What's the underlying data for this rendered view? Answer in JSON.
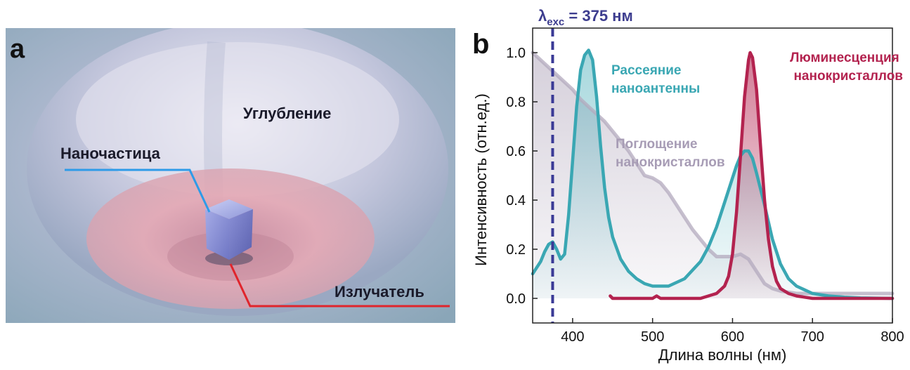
{
  "panel_a": {
    "label": "a",
    "labels": {
      "depression": "Углубление",
      "nanoparticle": "Наночастица",
      "emitter": "Излучатель"
    },
    "colors": {
      "nanoparticle_line": "#2e9be8",
      "emitter_line": "#e0252c",
      "label_text": "#1a1a2a"
    }
  },
  "panel_b": {
    "label": "b",
    "excitation_label": "λexc = 375 нм",
    "excitation_main": "λ",
    "excitation_sub": "exc",
    "excitation_rest": " = 375 нм"
  },
  "chart_data": {
    "type": "line",
    "xlabel": "Длина волны (нм)",
    "ylabel": "Интенсивность (отн.ед.)",
    "xlim": [
      350,
      800
    ],
    "ylim": [
      -0.1,
      1.1
    ],
    "xticks": [
      400,
      500,
      600,
      700,
      800
    ],
    "yticks": [
      0.0,
      0.2,
      0.4,
      0.6,
      0.8,
      1.0
    ],
    "xtick_labels": [
      "400",
      "500",
      "600",
      "700",
      "800"
    ],
    "ytick_labels": [
      "0.0",
      "0.2",
      "0.4",
      "0.6",
      "0.8",
      "1.0"
    ],
    "excitation_wavelength": 375,
    "series": [
      {
        "name": "Поглощение нанокристаллов",
        "label_line1": "Поглощение",
        "label_line2": "нанокристаллов",
        "color": "#b3a9bd",
        "x": [
          350,
          360,
          370,
          380,
          390,
          400,
          410,
          420,
          430,
          440,
          450,
          460,
          470,
          480,
          490,
          500,
          510,
          520,
          530,
          540,
          550,
          560,
          570,
          580,
          590,
          600,
          610,
          620,
          630,
          640,
          650,
          660,
          680,
          700,
          720,
          740,
          760,
          780,
          800
        ],
        "values": [
          1.0,
          0.97,
          0.94,
          0.91,
          0.88,
          0.85,
          0.81,
          0.78,
          0.75,
          0.72,
          0.68,
          0.64,
          0.6,
          0.55,
          0.5,
          0.49,
          0.47,
          0.43,
          0.38,
          0.33,
          0.28,
          0.24,
          0.2,
          0.17,
          0.17,
          0.17,
          0.18,
          0.16,
          0.11,
          0.06,
          0.04,
          0.03,
          0.02,
          0.02,
          0.02,
          0.02,
          0.02,
          0.02,
          0.02
        ]
      },
      {
        "name": "Рассеяние наноантенны",
        "label_line1": "Рассеяние",
        "label_line2": "наноантенны",
        "color": "#3aa7b3",
        "x": [
          350,
          360,
          365,
          370,
          375,
          380,
          385,
          390,
          395,
          400,
          405,
          410,
          415,
          420,
          425,
          430,
          435,
          440,
          445,
          450,
          460,
          470,
          480,
          490,
          500,
          520,
          540,
          560,
          570,
          580,
          590,
          600,
          605,
          610,
          615,
          620,
          625,
          630,
          640,
          650,
          660,
          670,
          680,
          700,
          720,
          740,
          760,
          780,
          800
        ],
        "values": [
          0.1,
          0.15,
          0.19,
          0.22,
          0.23,
          0.2,
          0.16,
          0.18,
          0.34,
          0.56,
          0.78,
          0.93,
          0.99,
          1.01,
          0.97,
          0.82,
          0.62,
          0.45,
          0.33,
          0.25,
          0.16,
          0.11,
          0.08,
          0.06,
          0.05,
          0.05,
          0.08,
          0.15,
          0.21,
          0.29,
          0.39,
          0.49,
          0.54,
          0.58,
          0.6,
          0.6,
          0.57,
          0.51,
          0.38,
          0.24,
          0.14,
          0.08,
          0.05,
          0.02,
          0.01,
          0.005,
          0.002,
          0.001,
          0.0
        ]
      },
      {
        "name": "Люминесценция нанокристаллов",
        "label_line1": "Люминесценция",
        "label_line2": "нанокристаллов",
        "color": "#b3234f",
        "x": [
          447,
          450,
          460,
          480,
          500,
          505,
          510,
          530,
          560,
          580,
          590,
          595,
          600,
          605,
          610,
          615,
          620,
          622,
          625,
          630,
          635,
          640,
          645,
          650,
          655,
          660,
          670,
          680,
          700,
          720,
          760,
          800
        ],
        "values": [
          0.01,
          0.0,
          0.0,
          0.0,
          0.0,
          0.01,
          0.0,
          0.0,
          0.0,
          0.02,
          0.05,
          0.09,
          0.18,
          0.35,
          0.58,
          0.82,
          0.97,
          1.0,
          0.98,
          0.85,
          0.62,
          0.4,
          0.24,
          0.13,
          0.07,
          0.04,
          0.02,
          0.01,
          0.0,
          0.0,
          0.0,
          0.0
        ]
      }
    ]
  }
}
